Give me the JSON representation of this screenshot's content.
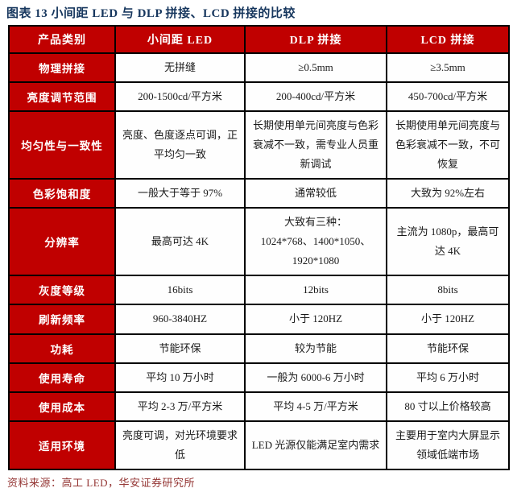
{
  "title": "图表 13 小间距 LED 与 DLP 拼接、LCD 拼接的比较",
  "source_note": "资料来源：高工 LED，华安证券研究所",
  "colors": {
    "header_red": "#C00000",
    "title_navy": "#17375E",
    "source_dark_red": "#943634",
    "border_black": "#000000",
    "cell_text": "#1a1a1a"
  },
  "table": {
    "headers": [
      "产品类别",
      "小间距 LED",
      "DLP 拼接",
      "LCD 拼接"
    ],
    "rows": [
      {
        "label": "物理拼接",
        "cells": [
          "无拼缝",
          "≥0.5mm",
          "≥3.5mm"
        ]
      },
      {
        "label": "亮度调节范围",
        "cells": [
          "200-1500cd/平方米",
          "200-400cd/平方米",
          "450-700cd/平方米"
        ]
      },
      {
        "label": "均匀性与一致性",
        "cells": [
          "亮度、色度逐点可调，正平均匀一致",
          "长期使用单元间亮度与色彩衰减不一致，需专业人员重新调试",
          "长期使用单元间亮度与色彩衰减不一致，不可恢复"
        ]
      },
      {
        "label": "色彩饱和度",
        "cells": [
          "一般大于等于 97%",
          "通常较低",
          "大致为 92%左右"
        ]
      },
      {
        "label": "分辨率",
        "cells": [
          "最高可达 4K",
          "大致有三种：\n1024*768、1400*1050、1920*1080",
          "主流为 1080p，最高可达 4K"
        ]
      },
      {
        "label": "灰度等级",
        "cells": [
          "16bits",
          "12bits",
          "8bits"
        ]
      },
      {
        "label": "刷新频率",
        "cells": [
          "960-3840HZ",
          "小于 120HZ",
          "小于 120HZ"
        ]
      },
      {
        "label": "功耗",
        "cells": [
          "节能环保",
          "较为节能",
          "节能环保"
        ]
      },
      {
        "label": "使用寿命",
        "cells": [
          "平均 10 万小时",
          "一般为 6000-6 万小时",
          "平均 6 万小时"
        ]
      },
      {
        "label": "使用成本",
        "cells": [
          "平均 2-3 万/平方米",
          "平均 4-5 万/平方米",
          "80 寸以上价格较高"
        ]
      },
      {
        "label": "适用环境",
        "cells": [
          "亮度可调，对光环境要求低",
          "LED 光源仅能满足室内需求",
          "主要用于室内大屏显示领域低端市场"
        ]
      }
    ]
  }
}
